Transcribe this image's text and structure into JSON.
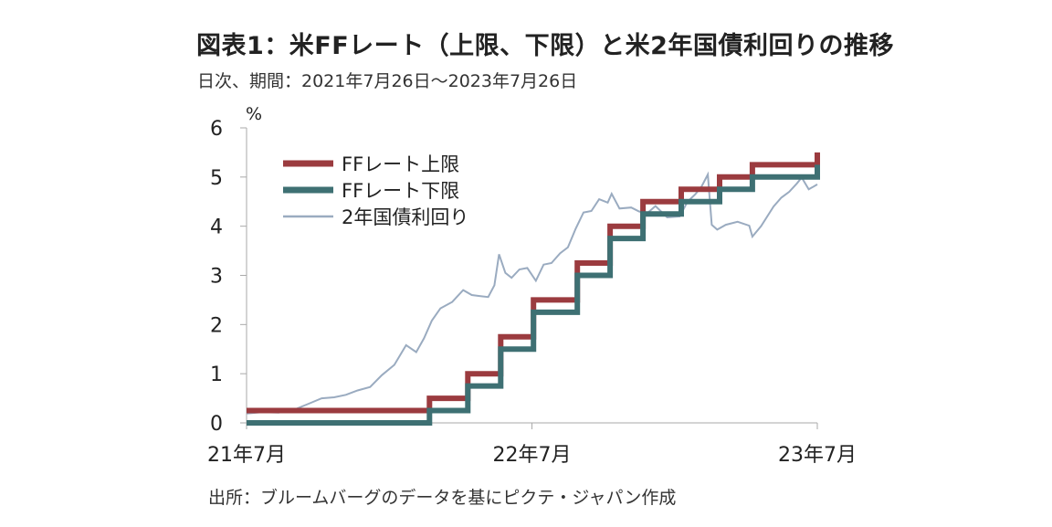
{
  "header": {
    "title": "図表1：米FFレート（上限、下限）と米2年国債利回りの推移",
    "subtitle": "日次、期間：2021年7月26日～2023年7月26日"
  },
  "footer": {
    "source": "出所：ブルームバーグのデータを基にピクテ・ジャパン作成"
  },
  "chart_data": {
    "type": "line",
    "ylabel": "%",
    "ylim": [
      0,
      6
    ],
    "yticks": [
      "0",
      "1",
      "2",
      "3",
      "4",
      "5",
      "6"
    ],
    "xlim": [
      "2021-07-26",
      "2023-07-26"
    ],
    "xticks": [
      {
        "date": "2021-07-26",
        "label": "21年7月"
      },
      {
        "date": "2022-07-26",
        "label": "22年7月"
      },
      {
        "date": "2023-07-26",
        "label": "23年7月"
      }
    ],
    "grid": false,
    "legend_position": "top-left",
    "series": [
      {
        "name": "FFレート上限",
        "color": "#9b3b3f",
        "style": "step",
        "points": [
          [
            "2021-07-26",
            0.25
          ],
          [
            "2022-03-17",
            0.5
          ],
          [
            "2022-05-05",
            1.0
          ],
          [
            "2022-06-16",
            1.75
          ],
          [
            "2022-07-28",
            2.5
          ],
          [
            "2022-09-22",
            3.25
          ],
          [
            "2022-11-03",
            4.0
          ],
          [
            "2022-12-15",
            4.5
          ],
          [
            "2023-02-02",
            4.75
          ],
          [
            "2023-03-23",
            5.0
          ],
          [
            "2023-05-04",
            5.25
          ],
          [
            "2023-07-26",
            5.5
          ]
        ]
      },
      {
        "name": "FFレート下限",
        "color": "#3e7073",
        "style": "step",
        "points": [
          [
            "2021-07-26",
            0.0
          ],
          [
            "2022-03-17",
            0.25
          ],
          [
            "2022-05-05",
            0.75
          ],
          [
            "2022-06-16",
            1.5
          ],
          [
            "2022-07-28",
            2.25
          ],
          [
            "2022-09-22",
            3.0
          ],
          [
            "2022-11-03",
            3.75
          ],
          [
            "2022-12-15",
            4.25
          ],
          [
            "2023-02-02",
            4.5
          ],
          [
            "2023-03-23",
            4.75
          ],
          [
            "2023-05-04",
            5.0
          ],
          [
            "2023-07-26",
            5.25
          ]
        ]
      },
      {
        "name": "2年国債利回り",
        "color": "#9aabc0",
        "style": "line",
        "points": [
          [
            "2021-07-26",
            0.19
          ],
          [
            "2021-08-15",
            0.22
          ],
          [
            "2021-09-05",
            0.21
          ],
          [
            "2021-09-25",
            0.27
          ],
          [
            "2021-10-15",
            0.4
          ],
          [
            "2021-10-30",
            0.5
          ],
          [
            "2021-11-15",
            0.52
          ],
          [
            "2021-11-30",
            0.57
          ],
          [
            "2021-12-15",
            0.66
          ],
          [
            "2021-12-31",
            0.73
          ],
          [
            "2022-01-15",
            0.97
          ],
          [
            "2022-01-31",
            1.18
          ],
          [
            "2022-02-15",
            1.58
          ],
          [
            "2022-02-28",
            1.44
          ],
          [
            "2022-03-10",
            1.72
          ],
          [
            "2022-03-20",
            2.08
          ],
          [
            "2022-03-31",
            2.33
          ],
          [
            "2022-04-15",
            2.46
          ],
          [
            "2022-04-29",
            2.7
          ],
          [
            "2022-05-10",
            2.6
          ],
          [
            "2022-05-20",
            2.58
          ],
          [
            "2022-05-31",
            2.56
          ],
          [
            "2022-06-08",
            2.8
          ],
          [
            "2022-06-14",
            3.43
          ],
          [
            "2022-06-22",
            3.05
          ],
          [
            "2022-06-30",
            2.95
          ],
          [
            "2022-07-10",
            3.12
          ],
          [
            "2022-07-20",
            3.15
          ],
          [
            "2022-07-31",
            2.89
          ],
          [
            "2022-08-10",
            3.22
          ],
          [
            "2022-08-20",
            3.25
          ],
          [
            "2022-08-31",
            3.45
          ],
          [
            "2022-09-10",
            3.57
          ],
          [
            "2022-09-20",
            3.95
          ],
          [
            "2022-09-30",
            4.28
          ],
          [
            "2022-10-10",
            4.31
          ],
          [
            "2022-10-20",
            4.55
          ],
          [
            "2022-10-31",
            4.48
          ],
          [
            "2022-11-05",
            4.66
          ],
          [
            "2022-11-15",
            4.36
          ],
          [
            "2022-11-30",
            4.38
          ],
          [
            "2022-12-10",
            4.3
          ],
          [
            "2022-12-20",
            4.26
          ],
          [
            "2022-12-31",
            4.41
          ],
          [
            "2023-01-15",
            4.18
          ],
          [
            "2023-01-31",
            4.2
          ],
          [
            "2023-02-10",
            4.5
          ],
          [
            "2023-02-20",
            4.65
          ],
          [
            "2023-02-28",
            4.81
          ],
          [
            "2023-03-08",
            5.05
          ],
          [
            "2023-03-13",
            4.03
          ],
          [
            "2023-03-20",
            3.93
          ],
          [
            "2023-03-31",
            4.03
          ],
          [
            "2023-04-15",
            4.09
          ],
          [
            "2023-04-30",
            4.01
          ],
          [
            "2023-05-04",
            3.79
          ],
          [
            "2023-05-15",
            4.0
          ],
          [
            "2023-05-31",
            4.4
          ],
          [
            "2023-06-10",
            4.58
          ],
          [
            "2023-06-20",
            4.7
          ],
          [
            "2023-06-30",
            4.87
          ],
          [
            "2023-07-06",
            4.99
          ],
          [
            "2023-07-15",
            4.75
          ],
          [
            "2023-07-26",
            4.85
          ]
        ]
      }
    ]
  }
}
